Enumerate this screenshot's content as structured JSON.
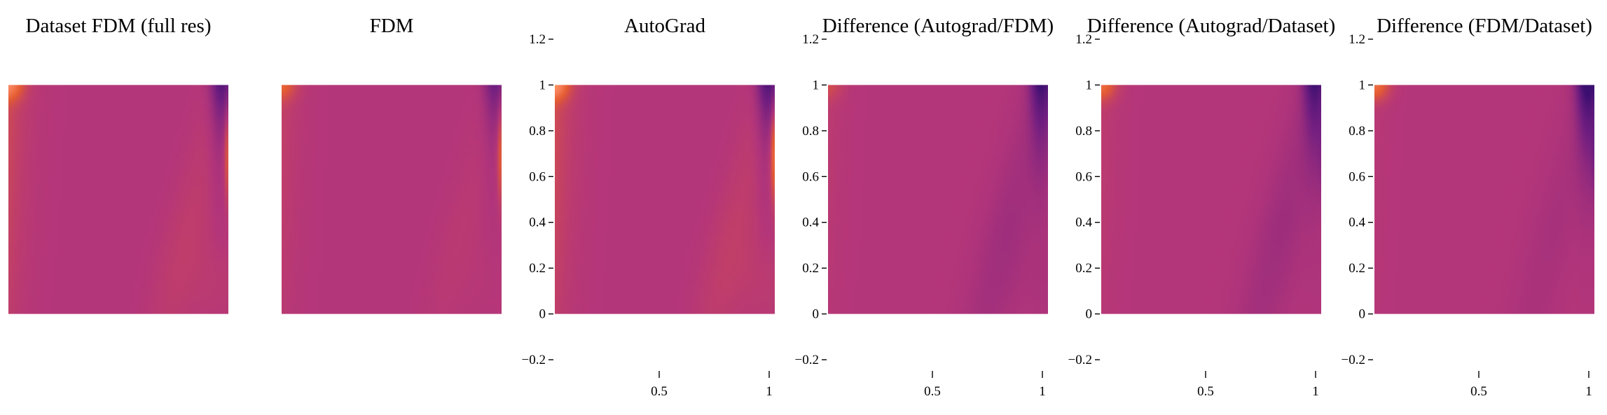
{
  "chart_data": [
    {
      "type": "heatmap",
      "title": "Dataset FDM (full res)",
      "show_axes": false,
      "field": {
        "type": "cavity",
        "left_wall": 0.8,
        "top_left_corner": 1.0,
        "top_right_dark": 0.85,
        "right_wall_bright": 0.75,
        "right_band": 0.35,
        "bottom_right_glow": 0.3
      }
    },
    {
      "type": "heatmap",
      "title": "FDM",
      "show_axes": false,
      "field": {
        "type": "cavity",
        "left_wall": 0.45,
        "top_left_corner": 0.6,
        "top_right_dark": 0.6,
        "right_wall_bright": 0.8,
        "right_band": 0.2,
        "bottom_right_glow": 0.12
      }
    },
    {
      "type": "heatmap",
      "title": "AutoGrad",
      "show_axes": true,
      "xticks": [
        0.5,
        1
      ],
      "yticks": [
        1.2,
        1,
        0.8,
        0.6,
        0.4,
        0.2,
        0,
        -0.2
      ],
      "xtick_labels": [
        "0.5",
        "1"
      ],
      "ytick_labels": [
        "1.2",
        "1",
        "0.8",
        "0.6",
        "0.4",
        "0.2",
        "0",
        "−0.2"
      ],
      "xlim": [
        0,
        1
      ],
      "ylim": [
        -0.2,
        1.2
      ],
      "field": {
        "type": "cavity",
        "left_wall": 0.9,
        "top_left_corner": 1.1,
        "top_right_dark": 0.9,
        "right_wall_bright": 1.1,
        "right_band": 0.4,
        "bottom_right_glow": 0.35
      }
    },
    {
      "type": "heatmap",
      "title": "Difference (Autograd/FDM)",
      "show_axes": true,
      "xticks": [
        0.5,
        1
      ],
      "yticks": [
        1.2,
        1,
        0.8,
        0.6,
        0.4,
        0.2,
        0,
        -0.2
      ],
      "xtick_labels": [
        "0.5",
        "1"
      ],
      "ytick_labels": [
        "1.2",
        "1",
        "0.8",
        "0.6",
        "0.4",
        "0.2",
        "0",
        "−0.2"
      ],
      "xlim": [
        0,
        1
      ],
      "ylim": [
        -0.2,
        1.2
      ],
      "field": {
        "type": "cavity",
        "left_wall": 0.25,
        "top_left_corner": 0.3,
        "top_right_dark": 0.95,
        "right_wall_bright": 0.0,
        "right_band": -0.55,
        "bottom_right_glow": -0.2
      }
    },
    {
      "type": "heatmap",
      "title": "Difference (Autograd/Dataset)",
      "show_axes": true,
      "xticks": [
        0.5,
        1
      ],
      "yticks": [
        1.2,
        1,
        0.8,
        0.6,
        0.4,
        0.2,
        0,
        -0.2
      ],
      "xtick_labels": [
        "0.5",
        "1"
      ],
      "ytick_labels": [
        "1.2",
        "1",
        "0.8",
        "0.6",
        "0.4",
        "0.2",
        "0",
        "−0.2"
      ],
      "xlim": [
        0,
        1
      ],
      "ylim": [
        -0.2,
        1.2
      ],
      "field": {
        "type": "cavity",
        "left_wall": 0.3,
        "top_left_corner": 0.8,
        "top_right_dark": 0.9,
        "right_wall_bright": -0.2,
        "right_band": -0.6,
        "bottom_right_glow": -0.1
      }
    },
    {
      "type": "heatmap",
      "title": "Difference (FDM/Dataset)",
      "show_axes": true,
      "xticks": [
        0.5,
        1
      ],
      "yticks": [
        1.2,
        1,
        0.8,
        0.6,
        0.4,
        0.2,
        0,
        -0.2
      ],
      "xtick_labels": [
        "0.5",
        "1"
      ],
      "ytick_labels": [
        "1.2",
        "1",
        "0.8",
        "0.6",
        "0.4",
        "0.2",
        "0",
        "−0.2"
      ],
      "xlim": [
        0,
        1
      ],
      "ylim": [
        -0.2,
        1.2
      ],
      "field": {
        "type": "cavity",
        "left_wall": 0.15,
        "top_left_corner": 0.9,
        "top_right_dark": 1.2,
        "right_wall_bright": -0.3,
        "right_band": -0.35,
        "bottom_right_glow": 0.0
      }
    }
  ],
  "colors": {
    "background": "#ffffff",
    "colormap": "inferno",
    "colormap_stops": [
      "#3b0f70",
      "#721f81",
      "#b5367a",
      "#e55c30",
      "#fb8761",
      "#fcb519",
      "#fcfdbf"
    ],
    "axis": "#000000"
  }
}
